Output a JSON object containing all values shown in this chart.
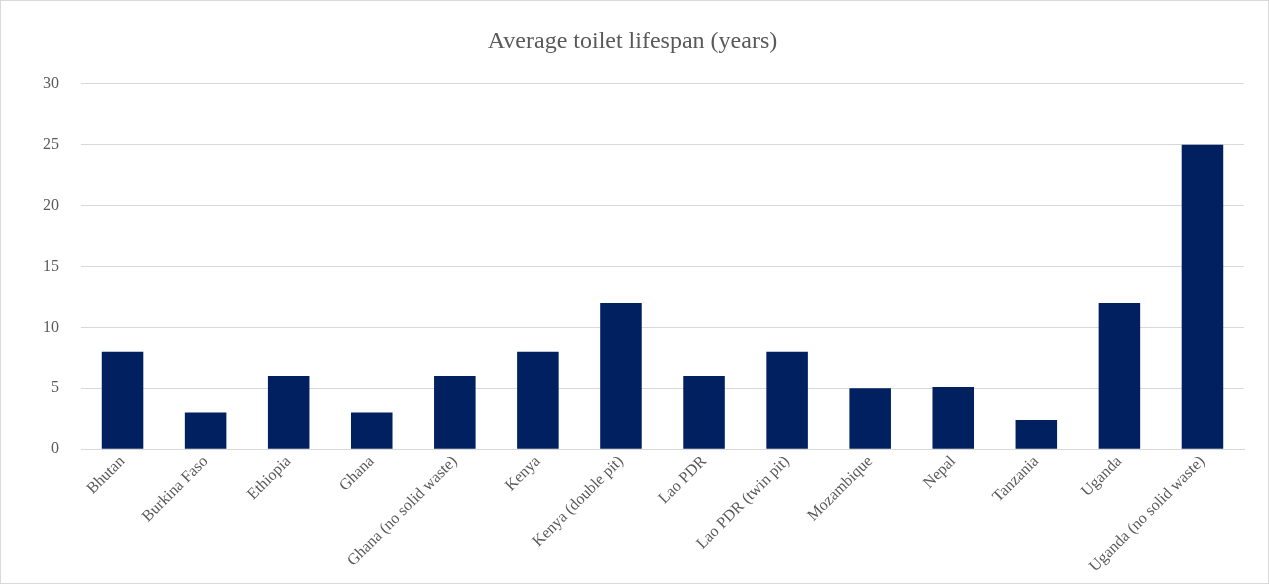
{
  "chart_data": {
    "type": "bar",
    "title": "Average toilet lifespan (years)",
    "categories": [
      "Bhutan",
      "Burkina Faso",
      "Ethiopia",
      "Ghana",
      "Ghana (no solid waste)",
      "Kenya",
      "Kenya (double pit)",
      "Lao PDR",
      "Lao PDR (twin pit)",
      "Mozambique",
      "Nepal",
      "Tanzania",
      "Uganda",
      "Uganda (no solid waste)"
    ],
    "values": [
      8,
      3,
      6,
      3,
      6,
      8,
      12,
      6,
      8,
      5,
      5.1,
      2.4,
      12,
      25
    ],
    "color": "#002060",
    "ylim": [
      0,
      30
    ],
    "yticks": [
      0,
      5,
      10,
      15,
      20,
      25,
      30
    ],
    "grid": "y",
    "legend": false
  }
}
